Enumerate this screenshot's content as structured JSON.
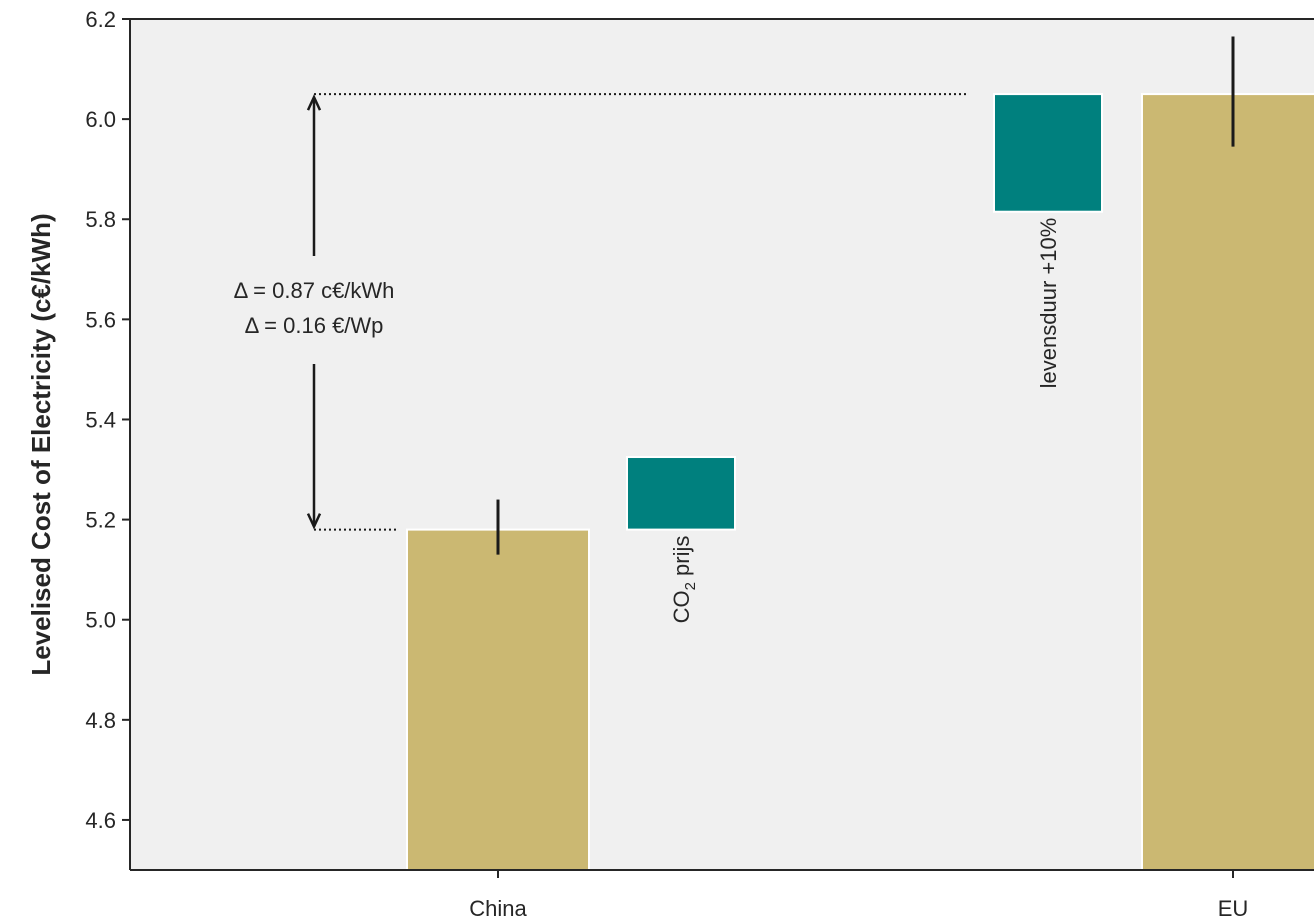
{
  "chart_data": {
    "type": "bar",
    "xlabel": "",
    "ylabel": "Levelised Cost of Electricity (c€/kWh)",
    "ylim": [
      4.5,
      6.2
    ],
    "yticks": [
      "4.6",
      "4.8",
      "5.0",
      "5.2",
      "5.4",
      "5.6",
      "5.8",
      "6.0",
      "6.2"
    ],
    "grid": false,
    "bars": [
      {
        "category": "China",
        "value": 5.18,
        "error_low": 5.13,
        "error_high": 5.24,
        "color": "#cbb872"
      },
      {
        "category": "EU",
        "value": 6.05,
        "error_low": 5.945,
        "error_high": 6.165,
        "color": "#cbb872"
      }
    ],
    "steps": [
      {
        "label_prefix": "CO",
        "label_sub": "2",
        "label_suffix": " prijs",
        "from": 5.18,
        "to": 5.325,
        "color": "#00807e"
      },
      {
        "label_prefix": "levensduur +10%",
        "label_sub": "",
        "label_suffix": "",
        "from": 5.815,
        "to": 6.05,
        "color": "#00807e"
      }
    ],
    "annotation": {
      "line1": "Δ = 0.87 c€/kWh",
      "line2": "Δ = 0.16 €/Wp",
      "from": 5.18,
      "to": 6.05
    },
    "colors": {
      "plot_background": "#f0f0f0",
      "bar": "#cbb872",
      "step": "#00807e"
    }
  }
}
